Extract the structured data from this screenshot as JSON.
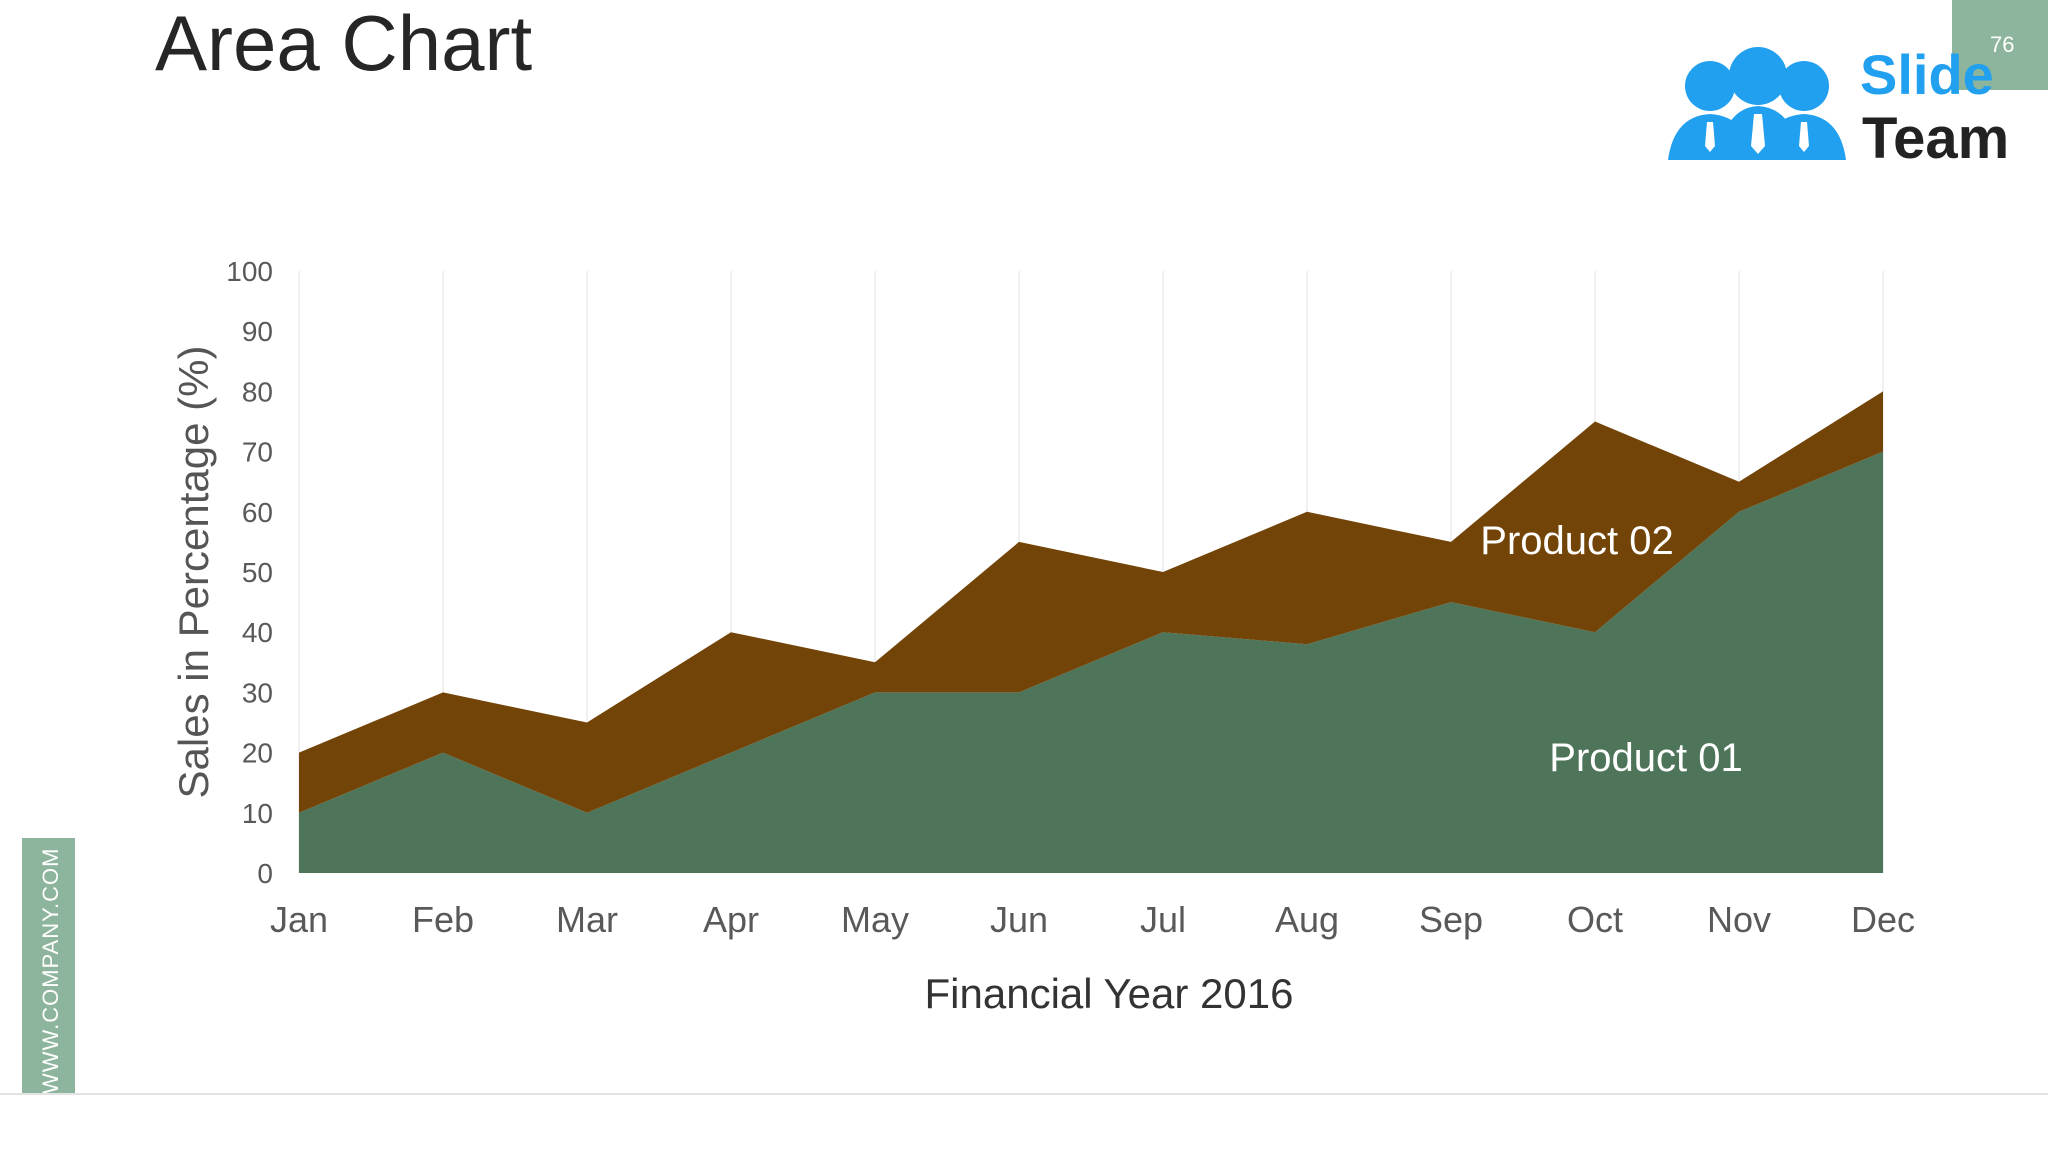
{
  "slide": {
    "title": "Area Chart",
    "page_number": "76",
    "side_text": "WWW.COMPANY.COM",
    "logo_words": [
      "Slide",
      "Team"
    ],
    "colors": {
      "accent_green": "#8db49c",
      "product01": "#4e755a",
      "product02": "#734408",
      "logo_blue": "#22a0f0",
      "logo_dark": "#222222"
    }
  },
  "chart_data": {
    "type": "area",
    "stacked": true,
    "categories": [
      "Jan",
      "Feb",
      "Mar",
      "Apr",
      "May",
      "Jun",
      "Jul",
      "Aug",
      "Sep",
      "Oct",
      "Nov",
      "Dec"
    ],
    "series": [
      {
        "name": "Product 01",
        "values": [
          10,
          20,
          10,
          20,
          30,
          30,
          40,
          38,
          45,
          40,
          60,
          70
        ],
        "color": "#4e755a"
      },
      {
        "name": "Product 02",
        "values": [
          10,
          10,
          15,
          20,
          5,
          25,
          10,
          22,
          10,
          35,
          5,
          10
        ],
        "color": "#734408"
      }
    ],
    "xlabel": "Financial Year 2016",
    "ylabel": "Sales in Percentage (%)",
    "ylim": [
      0,
      100
    ],
    "yticks": [
      0,
      10,
      20,
      30,
      40,
      50,
      60,
      70,
      80,
      90,
      100
    ],
    "grid": "vertical",
    "legend": "inline labels"
  }
}
